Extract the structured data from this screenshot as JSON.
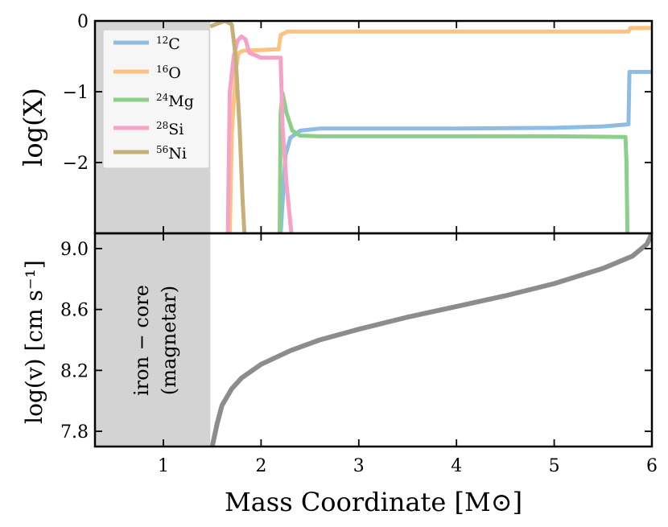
{
  "chart_data": [
    {
      "type": "line",
      "panel": "top",
      "ylabel": "log(X)",
      "xlim": [
        0.3,
        6.0
      ],
      "ylim": [
        -3.0,
        0.0
      ],
      "yticks": [
        0,
        -1,
        -2
      ],
      "ytick_labels": [
        "0",
        "−1",
        "−2"
      ],
      "shaded_region": {
        "x0": 0.3,
        "x1": 1.48,
        "color": "#d3d3d3"
      },
      "legend_position": "top-left",
      "series": [
        {
          "name": "12C",
          "label_sup": "12",
          "label_el": "C",
          "color": "#8dbde3",
          "points": [
            [
              2.2,
              -3.0
            ],
            [
              2.25,
              -1.9
            ],
            [
              2.3,
              -1.65
            ],
            [
              2.4,
              -1.55
            ],
            [
              2.6,
              -1.52
            ],
            [
              3.0,
              -1.52
            ],
            [
              4.0,
              -1.52
            ],
            [
              5.0,
              -1.51
            ],
            [
              5.5,
              -1.49
            ],
            [
              5.76,
              -1.46
            ],
            [
              5.77,
              -0.72
            ],
            [
              6.0,
              -0.72
            ]
          ]
        },
        {
          "name": "16O",
          "label_sup": "16",
          "label_el": "O",
          "color": "#fcc27f",
          "points": [
            [
              1.68,
              -3.0
            ],
            [
              1.7,
              -1.6
            ],
            [
              1.74,
              -0.7
            ],
            [
              1.77,
              -0.45
            ],
            [
              1.82,
              -0.42
            ],
            [
              2.0,
              -0.41
            ],
            [
              2.18,
              -0.4
            ],
            [
              2.2,
              -0.2
            ],
            [
              2.27,
              -0.15
            ],
            [
              3.0,
              -0.15
            ],
            [
              4.0,
              -0.15
            ],
            [
              5.0,
              -0.15
            ],
            [
              5.76,
              -0.15
            ],
            [
              5.78,
              -0.1
            ],
            [
              6.0,
              -0.1
            ]
          ]
        },
        {
          "name": "24Mg",
          "label_sup": "24",
          "label_el": "Mg",
          "color": "#8ccf8a",
          "points": [
            [
              2.19,
              -3.0
            ],
            [
              2.2,
              -1.3
            ],
            [
              2.22,
              -1.02
            ],
            [
              2.26,
              -1.3
            ],
            [
              2.32,
              -1.55
            ],
            [
              2.4,
              -1.62
            ],
            [
              2.6,
              -1.63
            ],
            [
              3.0,
              -1.63
            ],
            [
              4.0,
              -1.63
            ],
            [
              5.0,
              -1.63
            ],
            [
              5.73,
              -1.64
            ],
            [
              5.74,
              -2.0
            ],
            [
              5.75,
              -3.0
            ]
          ]
        },
        {
          "name": "28Si",
          "label_sup": "28",
          "label_el": "Si",
          "color": "#f5a2c6",
          "points": [
            [
              1.66,
              -3.0
            ],
            [
              1.68,
              -1.0
            ],
            [
              1.72,
              -0.5
            ],
            [
              1.76,
              -0.28
            ],
            [
              1.8,
              -0.22
            ],
            [
              1.84,
              -0.26
            ],
            [
              1.88,
              -0.45
            ],
            [
              2.0,
              -0.52
            ],
            [
              2.2,
              -0.52
            ],
            [
              2.22,
              -1.5
            ],
            [
              2.26,
              -2.3
            ],
            [
              2.31,
              -3.0
            ]
          ]
        },
        {
          "name": "56Ni",
          "label_sup": "56",
          "label_el": "Ni",
          "color": "#c6b07a",
          "points": [
            [
              1.48,
              -0.08
            ],
            [
              1.55,
              -0.04
            ],
            [
              1.63,
              0.0
            ],
            [
              1.7,
              -0.05
            ],
            [
              1.74,
              -0.5
            ],
            [
              1.78,
              -1.5
            ],
            [
              1.81,
              -2.5
            ],
            [
              1.83,
              -3.0
            ]
          ]
        }
      ]
    },
    {
      "type": "line",
      "panel": "bottom",
      "ylabel": "log(v) [cm s⁻¹]",
      "xlabel": "Mass Coordinate [M⊙]",
      "xlim": [
        0.3,
        6.0
      ],
      "ylim": [
        7.7,
        9.1
      ],
      "xticks": [
        1,
        2,
        3,
        4,
        5,
        6
      ],
      "xtick_labels": [
        "1",
        "2",
        "3",
        "4",
        "5",
        "6"
      ],
      "yticks": [
        7.8,
        8.2,
        8.6,
        9.0
      ],
      "ytick_labels": [
        "7.8",
        "8.2",
        "8.6",
        "9.0"
      ],
      "shaded_region": {
        "x0": 0.3,
        "x1": 1.48,
        "color": "#d3d3d3"
      },
      "annotation": [
        "iron − core",
        "(magnetar)"
      ],
      "series": [
        {
          "name": "velocity",
          "color": "#8c8c8c",
          "points": [
            [
              1.5,
              7.7
            ],
            [
              1.55,
              7.85
            ],
            [
              1.6,
              7.97
            ],
            [
              1.7,
              8.08
            ],
            [
              1.8,
              8.15
            ],
            [
              2.0,
              8.24
            ],
            [
              2.3,
              8.33
            ],
            [
              2.6,
              8.4
            ],
            [
              3.0,
              8.47
            ],
            [
              3.5,
              8.55
            ],
            [
              4.0,
              8.62
            ],
            [
              4.5,
              8.69
            ],
            [
              5.0,
              8.77
            ],
            [
              5.5,
              8.87
            ],
            [
              5.8,
              8.95
            ],
            [
              5.95,
              9.03
            ],
            [
              6.0,
              9.1
            ]
          ]
        }
      ]
    }
  ]
}
